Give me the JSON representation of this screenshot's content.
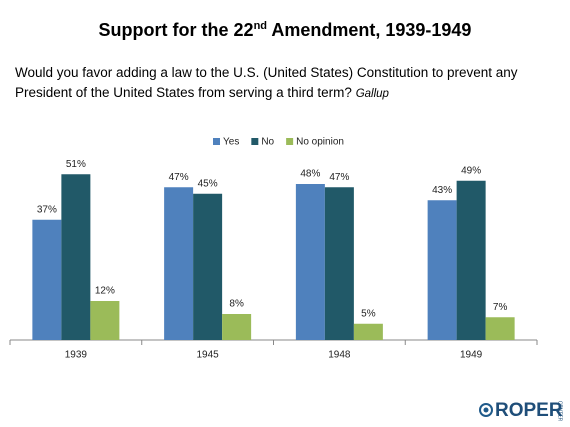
{
  "chart_data": {
    "type": "bar",
    "title": [
      "Support for the 22",
      "nd",
      " Amendment, 1939-1949"
    ],
    "subtitle": "Would you favor adding a law to the U.S. (United States) Constitution to prevent any President of the United States from serving a third term?",
    "source": "Gallup",
    "categories": [
      "1939",
      "1945",
      "1948",
      "1949"
    ],
    "series": [
      {
        "name": "Yes",
        "color": "#4f81bd",
        "values": [
          37,
          47,
          48,
          43
        ],
        "value_labels": [
          "37%",
          "47%",
          "48%",
          "43%"
        ]
      },
      {
        "name": "No",
        "color": "#215968",
        "values": [
          51,
          45,
          47,
          49
        ],
        "value_labels": [
          "51%",
          "45%",
          "47%",
          "49%"
        ]
      },
      {
        "name": "No opinion",
        "color": "#9bbb59",
        "values": [
          12,
          8,
          5,
          7
        ],
        "value_labels": [
          "12%",
          "8%",
          "5%",
          "7%"
        ]
      }
    ],
    "legend": "top"
  },
  "logo": {
    "name": "ROPER",
    "sub": "CENTER"
  }
}
